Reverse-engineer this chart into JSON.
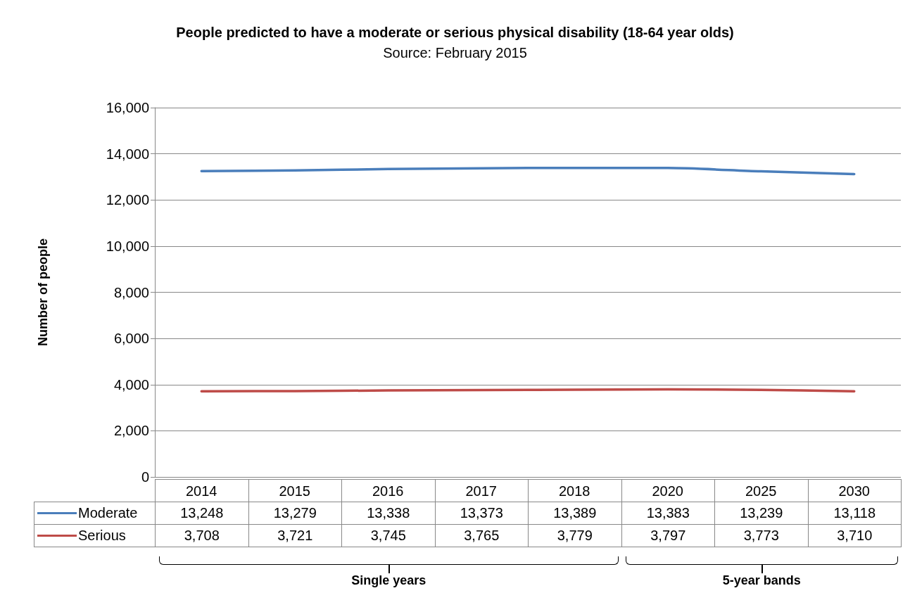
{
  "chart_data": {
    "type": "line",
    "title": "People predicted to have a moderate or serious physical disability (18-64 year olds)",
    "subtitle": "Source: February 2015",
    "ylabel": "Number of people",
    "categories": [
      "2014",
      "2015",
      "2016",
      "2017",
      "2018",
      "2020",
      "2025",
      "2030"
    ],
    "series": [
      {
        "name": "Moderate",
        "color": "#4a7ebb",
        "values": [
          13248,
          13279,
          13338,
          13373,
          13389,
          13383,
          13239,
          13118
        ],
        "value_labels": [
          "13,248",
          "13,279",
          "13,338",
          "13,373",
          "13,389",
          "13,383",
          "13,239",
          "13,118"
        ]
      },
      {
        "name": "Serious",
        "color": "#be4b48",
        "values": [
          3708,
          3721,
          3745,
          3765,
          3779,
          3797,
          3773,
          3710
        ],
        "value_labels": [
          "3,708",
          "3,721",
          "3,745",
          "3,765",
          "3,779",
          "3,797",
          "3,773",
          "3,710"
        ]
      }
    ],
    "ylim": [
      0,
      16000
    ],
    "yticks": [
      {
        "value": 0,
        "label": "0"
      },
      {
        "value": 2000,
        "label": "2,000"
      },
      {
        "value": 4000,
        "label": "4,000"
      },
      {
        "value": 6000,
        "label": "6,000"
      },
      {
        "value": 8000,
        "label": "8,000"
      },
      {
        "value": 10000,
        "label": "10,000"
      },
      {
        "value": 12000,
        "label": "12,000"
      },
      {
        "value": 14000,
        "label": "14,000"
      },
      {
        "value": 16000,
        "label": "16,000"
      }
    ],
    "grid": "y",
    "legend": "left",
    "marker": "none",
    "line_style": "solid",
    "annotations": [
      "Single years",
      "5-year bands"
    ]
  }
}
